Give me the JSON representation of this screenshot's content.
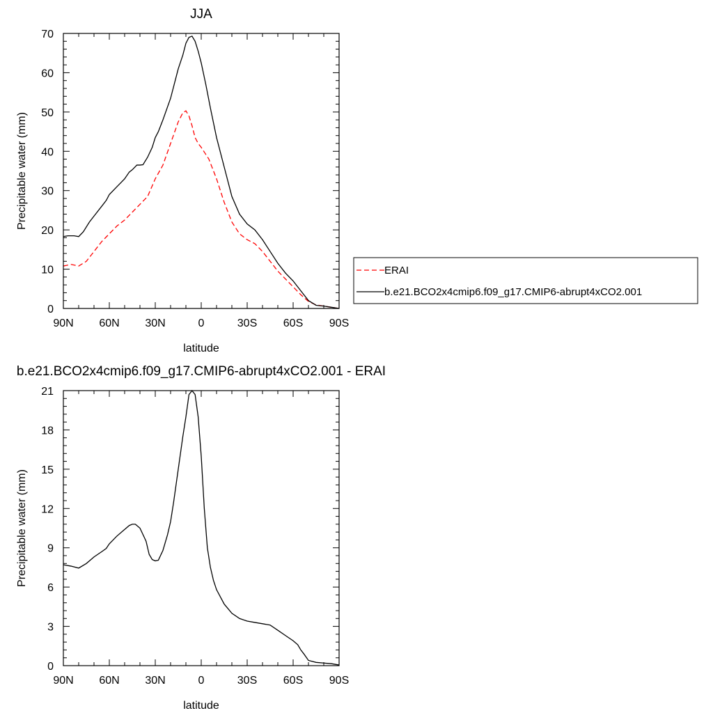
{
  "chart_data": [
    {
      "type": "line",
      "title": "JJA",
      "xlabel": "latitude",
      "ylabel": "Precipitable water (mm)",
      "xlim": [
        90,
        -90
      ],
      "ylim": [
        0,
        70
      ],
      "x_ticks": [
        90,
        60,
        30,
        0,
        -30,
        -60,
        -90
      ],
      "x_tick_labels": [
        "90N",
        "60N",
        "30N",
        "0",
        "30S",
        "60S",
        "90S"
      ],
      "y_ticks": [
        0,
        10,
        20,
        30,
        40,
        50,
        60,
        70
      ],
      "y_tick_labels": [
        "0",
        "10",
        "20",
        "30",
        "40",
        "50",
        "60",
        "70"
      ],
      "grid": false,
      "legend": "right",
      "series": [
        {
          "name": "ERAI",
          "color": "#ff0000",
          "dash": "dashed",
          "x": [
            90,
            85,
            80,
            75,
            70,
            65,
            60,
            55,
            50,
            45,
            40,
            35,
            30,
            25,
            20,
            15,
            12,
            10,
            8,
            6,
            4,
            2,
            0,
            -5,
            -10,
            -15,
            -20,
            -25,
            -30,
            -35,
            -40,
            -45,
            -50,
            -55,
            -60,
            -65,
            -70,
            -75,
            -80,
            -85,
            -90
          ],
          "y": [
            10.8,
            11.2,
            10.8,
            12.0,
            14.5,
            17.0,
            19.0,
            21.0,
            22.5,
            24.5,
            26.5,
            28.5,
            33.0,
            36.5,
            42.0,
            47.5,
            49.8,
            50.3,
            49.0,
            46.5,
            43.5,
            42.0,
            41.0,
            38.0,
            33.0,
            27.0,
            22.0,
            19.0,
            17.5,
            16.5,
            14.5,
            12.0,
            9.5,
            7.5,
            5.5,
            3.5,
            1.8,
            0.9,
            0.6,
            0.3,
            0.0
          ]
        },
        {
          "name": "b.e21.BCO2x4cmip6.f09_g17.CMIP6-abrupt4xCO2.001",
          "color": "#000000",
          "dash": "solid",
          "x": [
            90,
            87,
            83,
            80,
            77,
            73,
            70,
            65,
            62,
            60,
            55,
            50,
            47,
            45,
            42,
            40,
            38,
            35,
            32,
            30,
            28,
            25,
            20,
            15,
            12,
            10,
            8,
            6,
            4,
            2,
            0,
            -3,
            -6,
            -10,
            -15,
            -20,
            -25,
            -30,
            -35,
            -40,
            -45,
            -50,
            -55,
            -60,
            -65,
            -70,
            -75,
            -80,
            -85,
            -90
          ],
          "y": [
            18.3,
            18.5,
            18.5,
            18.3,
            19.5,
            22.0,
            23.5,
            26.0,
            27.5,
            29.0,
            31.0,
            33.0,
            34.7,
            35.3,
            36.5,
            36.5,
            36.6,
            38.5,
            41.0,
            43.5,
            45.0,
            48.0,
            53.5,
            61.0,
            64.5,
            67.5,
            69.0,
            69.3,
            68.0,
            65.5,
            62.5,
            57.0,
            51.0,
            43.5,
            36.0,
            28.5,
            24.0,
            21.5,
            20.0,
            17.5,
            14.5,
            11.5,
            9.0,
            7.0,
            4.5,
            2.0,
            0.8,
            0.6,
            0.3,
            0.0
          ]
        }
      ]
    },
    {
      "type": "line",
      "title": "b.e21.BCO2x4cmip6.f09_g17.CMIP6-abrupt4xCO2.001 - ERAI",
      "xlabel": "latitude",
      "ylabel": "Precipitable water (mm)",
      "xlim": [
        90,
        -90
      ],
      "ylim": [
        0,
        21
      ],
      "x_ticks": [
        90,
        60,
        30,
        0,
        -30,
        -60,
        -90
      ],
      "x_tick_labels": [
        "90N",
        "60N",
        "30N",
        "0",
        "30S",
        "60S",
        "90S"
      ],
      "y_ticks": [
        0,
        3,
        6,
        9,
        12,
        15,
        18,
        21
      ],
      "y_tick_labels": [
        "0",
        "3",
        "6",
        "9",
        "12",
        "15",
        "18",
        "21"
      ],
      "grid": false,
      "series": [
        {
          "color": "#000000",
          "dash": "solid",
          "x": [
            90,
            85,
            80,
            75,
            70,
            65,
            62,
            60,
            55,
            50,
            47,
            45,
            43,
            40,
            38,
            36,
            34,
            32,
            30,
            28,
            25,
            22,
            20,
            18,
            15,
            12,
            10,
            8,
            6,
            4,
            2,
            0,
            -2,
            -4,
            -6,
            -8,
            -10,
            -15,
            -20,
            -25,
            -30,
            -35,
            -40,
            -45,
            -50,
            -55,
            -60,
            -63,
            -65,
            -67,
            -70,
            -75,
            -80,
            -85,
            -90
          ],
          "y": [
            7.7,
            7.6,
            7.45,
            7.8,
            8.3,
            8.7,
            8.95,
            9.3,
            9.9,
            10.4,
            10.7,
            10.8,
            10.8,
            10.5,
            10.0,
            9.5,
            8.5,
            8.1,
            8.0,
            8.05,
            8.8,
            10.0,
            11.0,
            12.5,
            15.0,
            17.5,
            19.0,
            20.7,
            21.0,
            20.7,
            19.0,
            16.0,
            12.0,
            9.0,
            7.5,
            6.5,
            5.8,
            4.7,
            4.0,
            3.6,
            3.4,
            3.3,
            3.2,
            3.1,
            2.7,
            2.3,
            1.9,
            1.6,
            1.2,
            0.9,
            0.4,
            0.25,
            0.2,
            0.15,
            0.05
          ]
        }
      ]
    }
  ]
}
